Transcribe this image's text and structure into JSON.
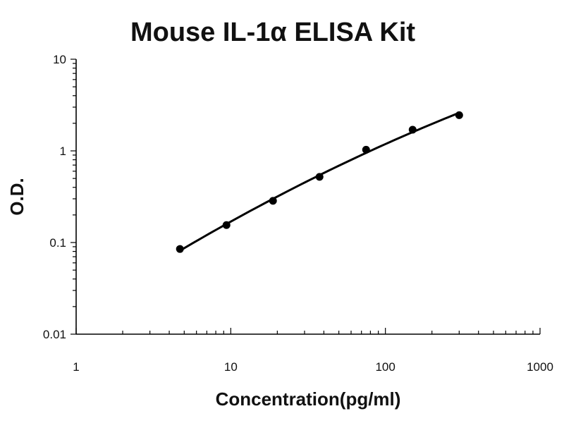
{
  "chart_data": {
    "type": "scatter",
    "title": "Mouse IL-1α ELISA Kit",
    "xlabel": "Concentration(pg/ml)",
    "ylabel": "O.D.",
    "xscale": "log",
    "yscale": "log",
    "xlim": [
      1,
      1000
    ],
    "ylim": [
      0.01,
      10
    ],
    "x_ticks": [
      1,
      10,
      100,
      1000
    ],
    "x_tick_labels": [
      "1",
      "10",
      "100",
      "1000"
    ],
    "y_ticks": [
      0.01,
      0.1,
      1,
      10
    ],
    "y_tick_labels": [
      "0.01",
      "0.1",
      "1",
      "10"
    ],
    "grid": false,
    "legend": "none",
    "series": [
      {
        "x": [
          4.69,
          9.38,
          18.75,
          37.5,
          75,
          150,
          300
        ],
        "y": [
          0.085,
          0.155,
          0.285,
          0.52,
          1.03,
          1.7,
          2.45
        ],
        "marker": "circle",
        "fit_line": true
      }
    ],
    "colors": {
      "marker": "#000000",
      "line": "#000000"
    }
  }
}
